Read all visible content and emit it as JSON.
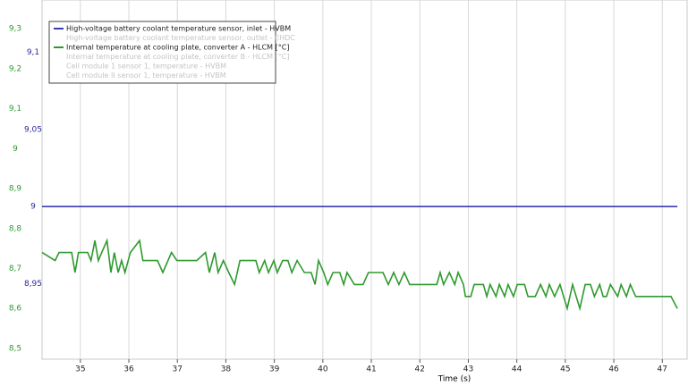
{
  "chart_data": {
    "type": "line",
    "x_label": "Time (s)",
    "xlim": [
      34.21,
      47.53
    ],
    "xticks": [
      35,
      36,
      37,
      38,
      39,
      40,
      41,
      42,
      43,
      44,
      45,
      46,
      47
    ],
    "ylim": [
      8.473,
      9.372
    ],
    "yticks": [
      {
        "value": 8.5,
        "label": "8,5"
      },
      {
        "value": 8.6,
        "label": "8,6"
      },
      {
        "value": 8.7,
        "label": "8,7"
      },
      {
        "value": 8.8,
        "label": "8,8"
      },
      {
        "value": 8.9,
        "label": "8,9"
      },
      9,
      {
        "value": 9.1,
        "label": "9,1"
      },
      {
        "value": 9.2,
        "label": "9,2"
      },
      {
        "value": 9.3,
        "label": "9,3"
      }
    ],
    "y_color": "#2e9a2e",
    "y2lim": [
      8.901,
      9.134
    ],
    "y2ticks": [
      {
        "value": 8.95,
        "label": "8,95"
      },
      9,
      {
        "value": 9.05,
        "label": "9,05"
      },
      {
        "value": 9.1,
        "label": "9,1"
      }
    ],
    "y2_color": "#2a2a9c",
    "grid": true,
    "legend": "upper left",
    "series": [
      {
        "name": "High-voltage battery coolant temperature sensor, inlet - HVBM",
        "color": "#3b3bb0",
        "axis": "y2",
        "x": [
          34.21,
          47.31
        ],
        "values": [
          9,
          9
        ]
      },
      {
        "name": "Internal temperature at cooling plate, converter A - HLCM [°C]",
        "color": "#2e9a2e",
        "axis": "y",
        "x": [
          34.21,
          34.48,
          34.56,
          34.82,
          34.89,
          34.96,
          35.15,
          35.22,
          35.3,
          35.37,
          35.44,
          35.55,
          35.63,
          35.7,
          35.78,
          35.85,
          35.92,
          36.03,
          36.22,
          36.29,
          36.59,
          36.7,
          36.88,
          36.99,
          37.4,
          37.58,
          37.66,
          37.77,
          37.84,
          37.95,
          38.06,
          38.18,
          38.29,
          38.62,
          38.69,
          38.8,
          38.88,
          38.99,
          39.06,
          39.17,
          39.28,
          39.36,
          39.47,
          39.62,
          39.76,
          39.84,
          39.91,
          40.02,
          40.1,
          40.21,
          40.35,
          40.43,
          40.5,
          40.65,
          40.83,
          40.94,
          41.24,
          41.35,
          41.46,
          41.57,
          41.68,
          41.79,
          42.35,
          42.42,
          42.49,
          42.61,
          42.72,
          42.79,
          42.9,
          42.94,
          43.05,
          43.12,
          43.31,
          43.38,
          43.45,
          43.57,
          43.64,
          43.75,
          43.82,
          43.93,
          44.01,
          44.16,
          44.23,
          44.38,
          44.49,
          44.6,
          44.67,
          44.78,
          44.89,
          45.04,
          45.15,
          45.3,
          45.41,
          45.52,
          45.6,
          45.71,
          45.78,
          45.85,
          45.93,
          46.08,
          46.15,
          46.26,
          46.34,
          46.45,
          47.18,
          47.31
        ],
        "values": [
          8.74,
          8.72,
          8.74,
          8.74,
          8.69,
          8.74,
          8.74,
          8.72,
          8.77,
          8.72,
          8.74,
          8.77,
          8.69,
          8.74,
          8.69,
          8.72,
          8.69,
          8.74,
          8.77,
          8.72,
          8.72,
          8.69,
          8.74,
          8.72,
          8.72,
          8.74,
          8.69,
          8.74,
          8.69,
          8.72,
          8.69,
          8.66,
          8.72,
          8.72,
          8.69,
          8.72,
          8.69,
          8.72,
          8.69,
          8.72,
          8.72,
          8.69,
          8.72,
          8.69,
          8.69,
          8.66,
          8.72,
          8.69,
          8.66,
          8.69,
          8.69,
          8.66,
          8.69,
          8.66,
          8.66,
          8.69,
          8.69,
          8.66,
          8.69,
          8.66,
          8.69,
          8.66,
          8.66,
          8.69,
          8.66,
          8.69,
          8.66,
          8.69,
          8.66,
          8.63,
          8.63,
          8.66,
          8.66,
          8.63,
          8.66,
          8.63,
          8.66,
          8.63,
          8.66,
          8.63,
          8.66,
          8.66,
          8.63,
          8.63,
          8.66,
          8.63,
          8.66,
          8.63,
          8.66,
          8.6,
          8.66,
          8.6,
          8.66,
          8.66,
          8.63,
          8.66,
          8.63,
          8.63,
          8.66,
          8.63,
          8.66,
          8.63,
          8.66,
          8.63,
          8.63,
          8.6
        ]
      }
    ],
    "inactive_series": [
      {
        "name": "High-voltage battery coolant temperature sensor, outlet - EHDC",
        "after": 0
      },
      {
        "name": "Internal temperature at cooling plate, converter B - HLCM [°C]",
        "after": 1
      },
      {
        "name": "Cell module 1 sensor 1, temperature - HVBM",
        "after": 1
      },
      {
        "name": "Cell module II sensor 1, temperature - HVBM",
        "after": 1
      }
    ]
  }
}
